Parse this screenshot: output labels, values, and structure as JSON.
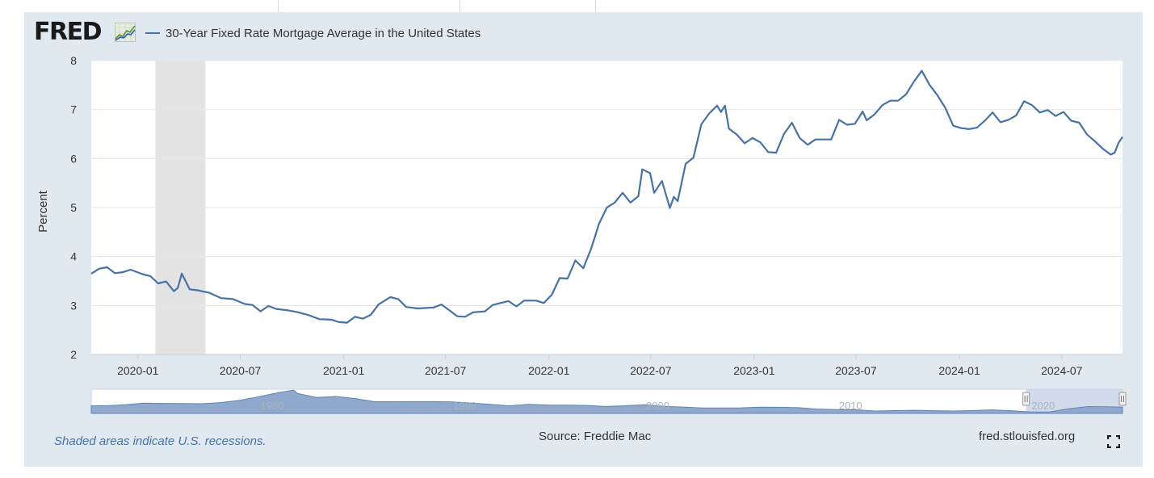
{
  "brand": {
    "logo_text": "FRED",
    "logo_icon": "fred-line-graph-icon"
  },
  "colors": {
    "line": "#4572a7",
    "panel": "#e1e9f0",
    "recession": "#e3e3e3",
    "navigator_fill": "#8fa8cb",
    "navigator_selected": "#c5d2e6"
  },
  "footer": {
    "recession_note": "Shaded areas indicate U.S. recessions.",
    "source": "Source: Freddie Mac",
    "site": "fred.stlouisfed.org",
    "fullscreen_icon": "fullscreen-icon"
  },
  "chart_data": {
    "type": "line",
    "title": "",
    "ylabel": "Percent",
    "xlabel": "",
    "ylim": [
      2,
      8
    ],
    "xlim": [
      "2019-10-10",
      "2024-10-17"
    ],
    "yticks": [
      2,
      3,
      4,
      5,
      6,
      7,
      8
    ],
    "xticks": [
      {
        "date": "2020-01-01",
        "label": "2020-01"
      },
      {
        "date": "2020-07-01",
        "label": "2020-07"
      },
      {
        "date": "2021-01-01",
        "label": "2021-01"
      },
      {
        "date": "2021-07-01",
        "label": "2021-07"
      },
      {
        "date": "2022-01-01",
        "label": "2022-01"
      },
      {
        "date": "2022-07-01",
        "label": "2022-07"
      },
      {
        "date": "2023-01-01",
        "label": "2023-01"
      },
      {
        "date": "2023-07-01",
        "label": "2023-07"
      },
      {
        "date": "2024-01-01",
        "label": "2024-01"
      },
      {
        "date": "2024-07-01",
        "label": "2024-07"
      }
    ],
    "grid": true,
    "legend_position": "top-left",
    "recessions": [
      {
        "start": "2020-02-01",
        "end": "2020-04-30"
      }
    ],
    "series": [
      {
        "name": "30-Year Fixed Rate Mortgage Average in the United States",
        "points": [
          [
            "2019-10-10",
            3.65
          ],
          [
            "2019-10-24",
            3.75
          ],
          [
            "2019-11-07",
            3.78
          ],
          [
            "2019-11-21",
            3.66
          ],
          [
            "2019-12-05",
            3.68
          ],
          [
            "2019-12-19",
            3.73
          ],
          [
            "2020-01-09",
            3.64
          ],
          [
            "2020-01-23",
            3.6
          ],
          [
            "2020-02-06",
            3.45
          ],
          [
            "2020-02-20",
            3.49
          ],
          [
            "2020-03-05",
            3.29
          ],
          [
            "2020-03-12",
            3.36
          ],
          [
            "2020-03-19",
            3.65
          ],
          [
            "2020-04-02",
            3.33
          ],
          [
            "2020-04-16",
            3.31
          ],
          [
            "2020-05-07",
            3.26
          ],
          [
            "2020-05-28",
            3.15
          ],
          [
            "2020-06-18",
            3.13
          ],
          [
            "2020-07-09",
            3.03
          ],
          [
            "2020-07-23",
            3.01
          ],
          [
            "2020-08-06",
            2.88
          ],
          [
            "2020-08-20",
            2.99
          ],
          [
            "2020-09-03",
            2.93
          ],
          [
            "2020-09-24",
            2.9
          ],
          [
            "2020-10-08",
            2.87
          ],
          [
            "2020-10-29",
            2.81
          ],
          [
            "2020-11-19",
            2.72
          ],
          [
            "2020-12-10",
            2.71
          ],
          [
            "2020-12-24",
            2.66
          ],
          [
            "2021-01-07",
            2.65
          ],
          [
            "2021-01-21",
            2.77
          ],
          [
            "2021-02-04",
            2.73
          ],
          [
            "2021-02-18",
            2.81
          ],
          [
            "2021-03-04",
            3.02
          ],
          [
            "2021-03-25",
            3.17
          ],
          [
            "2021-04-08",
            3.13
          ],
          [
            "2021-04-22",
            2.97
          ],
          [
            "2021-05-13",
            2.94
          ],
          [
            "2021-05-27",
            2.95
          ],
          [
            "2021-06-10",
            2.96
          ],
          [
            "2021-06-24",
            3.02
          ],
          [
            "2021-07-08",
            2.9
          ],
          [
            "2021-07-22",
            2.78
          ],
          [
            "2021-08-05",
            2.77
          ],
          [
            "2021-08-19",
            2.86
          ],
          [
            "2021-09-09",
            2.88
          ],
          [
            "2021-09-23",
            3.01
          ],
          [
            "2021-10-07",
            3.05
          ],
          [
            "2021-10-21",
            3.09
          ],
          [
            "2021-11-04",
            2.98
          ],
          [
            "2021-11-18",
            3.1
          ],
          [
            "2021-12-09",
            3.1
          ],
          [
            "2021-12-23",
            3.05
          ],
          [
            "2022-01-06",
            3.22
          ],
          [
            "2022-01-20",
            3.56
          ],
          [
            "2022-02-03",
            3.55
          ],
          [
            "2022-02-17",
            3.92
          ],
          [
            "2022-03-03",
            3.76
          ],
          [
            "2022-03-17",
            4.16
          ],
          [
            "2022-03-31",
            4.67
          ],
          [
            "2022-04-14",
            5.0
          ],
          [
            "2022-04-28",
            5.1
          ],
          [
            "2022-05-12",
            5.3
          ],
          [
            "2022-05-26",
            5.1
          ],
          [
            "2022-06-09",
            5.23
          ],
          [
            "2022-06-16",
            5.78
          ],
          [
            "2022-06-30",
            5.7
          ],
          [
            "2022-07-07",
            5.3
          ],
          [
            "2022-07-21",
            5.54
          ],
          [
            "2022-08-04",
            4.99
          ],
          [
            "2022-08-11",
            5.22
          ],
          [
            "2022-08-18",
            5.13
          ],
          [
            "2022-09-01",
            5.89
          ],
          [
            "2022-09-15",
            6.02
          ],
          [
            "2022-09-29",
            6.7
          ],
          [
            "2022-10-13",
            6.92
          ],
          [
            "2022-10-27",
            7.08
          ],
          [
            "2022-11-03",
            6.95
          ],
          [
            "2022-11-10",
            7.08
          ],
          [
            "2022-11-17",
            6.61
          ],
          [
            "2022-12-01",
            6.49
          ],
          [
            "2022-12-15",
            6.31
          ],
          [
            "2022-12-29",
            6.42
          ],
          [
            "2023-01-12",
            6.33
          ],
          [
            "2023-01-26",
            6.13
          ],
          [
            "2023-02-09",
            6.12
          ],
          [
            "2023-02-23",
            6.5
          ],
          [
            "2023-03-09",
            6.73
          ],
          [
            "2023-03-23",
            6.42
          ],
          [
            "2023-04-06",
            6.28
          ],
          [
            "2023-04-20",
            6.39
          ],
          [
            "2023-05-04",
            6.39
          ],
          [
            "2023-05-18",
            6.39
          ],
          [
            "2023-06-01",
            6.79
          ],
          [
            "2023-06-15",
            6.69
          ],
          [
            "2023-06-29",
            6.71
          ],
          [
            "2023-07-13",
            6.96
          ],
          [
            "2023-07-20",
            6.78
          ],
          [
            "2023-08-03",
            6.9
          ],
          [
            "2023-08-17",
            7.09
          ],
          [
            "2023-08-31",
            7.18
          ],
          [
            "2023-09-14",
            7.18
          ],
          [
            "2023-09-28",
            7.31
          ],
          [
            "2023-10-12",
            7.57
          ],
          [
            "2023-10-26",
            7.79
          ],
          [
            "2023-11-09",
            7.5
          ],
          [
            "2023-11-23",
            7.29
          ],
          [
            "2023-12-07",
            7.03
          ],
          [
            "2023-12-21",
            6.67
          ],
          [
            "2024-01-04",
            6.62
          ],
          [
            "2024-01-18",
            6.6
          ],
          [
            "2024-02-01",
            6.63
          ],
          [
            "2024-02-15",
            6.77
          ],
          [
            "2024-02-29",
            6.94
          ],
          [
            "2024-03-14",
            6.74
          ],
          [
            "2024-03-28",
            6.79
          ],
          [
            "2024-04-11",
            6.88
          ],
          [
            "2024-04-25",
            7.17
          ],
          [
            "2024-05-09",
            7.09
          ],
          [
            "2024-05-23",
            6.94
          ],
          [
            "2024-06-06",
            6.99
          ],
          [
            "2024-06-20",
            6.87
          ],
          [
            "2024-07-04",
            6.95
          ],
          [
            "2024-07-18",
            6.77
          ],
          [
            "2024-08-01",
            6.73
          ],
          [
            "2024-08-15",
            6.49
          ],
          [
            "2024-08-29",
            6.35
          ],
          [
            "2024-09-12",
            6.2
          ],
          [
            "2024-09-26",
            6.08
          ],
          [
            "2024-10-03",
            6.12
          ],
          [
            "2024-10-10",
            6.32
          ],
          [
            "2024-10-17",
            6.44
          ]
        ]
      }
    ],
    "navigator": {
      "labels": [
        "1980",
        "1990",
        "2000",
        "2010",
        "2020"
      ],
      "label_positions": [
        1980,
        1990,
        2000,
        2010,
        2020
      ],
      "range": [
        1971.3,
        2024.8
      ],
      "yrange": [
        2,
        19
      ],
      "selection": [
        2019.8,
        2024.8
      ],
      "series": [
        [
          1971.3,
          7.3
        ],
        [
          1972,
          7.4
        ],
        [
          1973,
          8.0
        ],
        [
          1974,
          9.2
        ],
        [
          1975,
          9.0
        ],
        [
          1976,
          8.9
        ],
        [
          1977,
          8.8
        ],
        [
          1978,
          9.6
        ],
        [
          1979,
          11.2
        ],
        [
          1980,
          13.7
        ],
        [
          1981,
          16.6
        ],
        [
          1981.8,
          18.4
        ],
        [
          1982,
          16.0
        ],
        [
          1983,
          13.2
        ],
        [
          1984,
          13.9
        ],
        [
          1985,
          12.4
        ],
        [
          1986,
          10.2
        ],
        [
          1987,
          10.2
        ],
        [
          1988,
          10.3
        ],
        [
          1989,
          10.3
        ],
        [
          1990,
          10.1
        ],
        [
          1991,
          9.3
        ],
        [
          1992,
          8.4
        ],
        [
          1993,
          7.3
        ],
        [
          1994,
          8.4
        ],
        [
          1995,
          7.9
        ],
        [
          1996,
          7.8
        ],
        [
          1997,
          7.6
        ],
        [
          1998,
          6.9
        ],
        [
          1999,
          7.4
        ],
        [
          2000,
          8.1
        ],
        [
          2001,
          7.0
        ],
        [
          2002,
          6.5
        ],
        [
          2003,
          5.8
        ],
        [
          2004,
          5.8
        ],
        [
          2005,
          5.9
        ],
        [
          2006,
          6.4
        ],
        [
          2007,
          6.3
        ],
        [
          2008,
          6.0
        ],
        [
          2009,
          5.0
        ],
        [
          2010,
          4.7
        ],
        [
          2011,
          4.5
        ],
        [
          2012,
          3.7
        ],
        [
          2013,
          4.0
        ],
        [
          2014,
          4.2
        ],
        [
          2015,
          3.9
        ],
        [
          2016,
          3.7
        ],
        [
          2017,
          4.0
        ],
        [
          2018,
          4.5
        ],
        [
          2019,
          3.9
        ],
        [
          2020,
          3.1
        ],
        [
          2021,
          3.0
        ],
        [
          2022,
          5.3
        ],
        [
          2023,
          6.8
        ],
        [
          2024,
          6.7
        ],
        [
          2024.8,
          6.4
        ]
      ]
    }
  }
}
